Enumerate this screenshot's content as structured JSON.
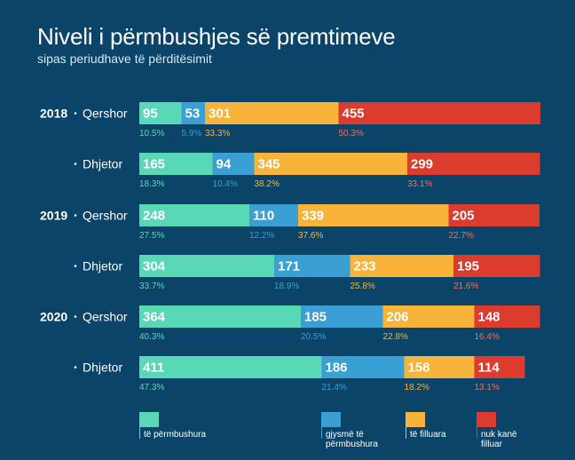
{
  "title": "Niveli i përmbushjes së premtimeve",
  "subtitle": "sipas periudhave të përditësimit",
  "colors": {
    "background": "#0a4468",
    "te_permbushura": "#5ad8b6",
    "gjysme": "#3a9fd2",
    "te_filluara": "#f8b33a",
    "nuk_kane_filluar": "#db3c2d"
  },
  "chart_data": {
    "type": "bar",
    "orientation": "horizontal",
    "stacked": true,
    "title": "Niveli i përmbushjes së premtimeve",
    "subtitle": "sipas periudhave të përditësimit",
    "grid": false,
    "legend_position": "bottom",
    "series": [
      {
        "name": "të përmbushura",
        "color": "#5ad8b6"
      },
      {
        "name": "gjysmë të përmbushura",
        "color": "#3a9fd2"
      },
      {
        "name": "të filluara",
        "color": "#f8b33a"
      },
      {
        "name": "nuk kanë filluar",
        "color": "#db3c2d"
      }
    ],
    "rows": [
      {
        "year": "2018",
        "period": "Qershor",
        "values": [
          95,
          53,
          301,
          455
        ],
        "percents": [
          "10.5%",
          "5.9%",
          "33.3%",
          "50.3%"
        ]
      },
      {
        "year": "",
        "period": "Dhjetor",
        "values": [
          165,
          94,
          345,
          299
        ],
        "percents": [
          "18.3%",
          "10.4%",
          "38.2%",
          "33.1%"
        ]
      },
      {
        "year": "2019",
        "period": "Qershor",
        "values": [
          248,
          110,
          339,
          205
        ],
        "percents": [
          "27.5%",
          "12.2%",
          "37.6%",
          "22.7%"
        ]
      },
      {
        "year": "",
        "period": "Dhjetor",
        "values": [
          304,
          171,
          233,
          195
        ],
        "percents": [
          "33.7%",
          "18.9%",
          "25.8%",
          "21.6%"
        ]
      },
      {
        "year": "2020",
        "period": "Qershor",
        "values": [
          364,
          185,
          206,
          148
        ],
        "percents": [
          "40.3%",
          "20.5%",
          "22.8%",
          "16.4%"
        ]
      },
      {
        "year": "",
        "period": "Dhjetor",
        "values": [
          411,
          186,
          158,
          114
        ],
        "percents": [
          "47.3%",
          "21.4%",
          "18.2%",
          "13.1%"
        ]
      }
    ]
  },
  "legend": [
    {
      "lines": [
        "të përmbushura"
      ]
    },
    {
      "lines": [
        "gjysmë të",
        "përmbushura"
      ]
    },
    {
      "lines": [
        "të filluara"
      ]
    },
    {
      "lines": [
        "nuk kanë",
        "filluar"
      ]
    }
  ]
}
